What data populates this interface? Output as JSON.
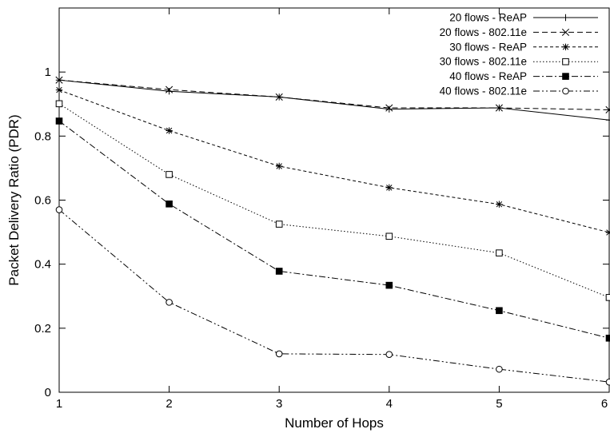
{
  "chart_data": {
    "type": "line",
    "title": "",
    "xlabel": "Number of Hops",
    "ylabel": "Packet Delivery Ratio (PDR)",
    "x": [
      1,
      2,
      3,
      4,
      5,
      6
    ],
    "xlim": [
      1,
      6
    ],
    "ylim": [
      0,
      1.2
    ],
    "xticks": [
      1,
      2,
      3,
      4,
      5,
      6
    ],
    "yticks": [
      0,
      0.2,
      0.4,
      0.6,
      0.8,
      1
    ],
    "grid": false,
    "legend_position": "top-right",
    "series": [
      {
        "name": "20 flows - ReAP",
        "marker": "plus",
        "dash": "solid",
        "values": [
          0.975,
          0.94,
          0.922,
          0.884,
          0.888,
          0.85
        ]
      },
      {
        "name": "20 flows - 802.11e",
        "marker": "cross",
        "dash": "dashed",
        "values": [
          0.975,
          0.945,
          0.922,
          0.888,
          0.888,
          0.882
        ]
      },
      {
        "name": "30 flows - ReAP",
        "marker": "star",
        "dash": "short-dash",
        "values": [
          0.944,
          0.817,
          0.706,
          0.639,
          0.587,
          0.499
        ]
      },
      {
        "name": "30 flows - 802.11e",
        "marker": "open-square",
        "dash": "dotted",
        "values": [
          0.901,
          0.68,
          0.525,
          0.487,
          0.435,
          0.296
        ]
      },
      {
        "name": "40 flows - ReAP",
        "marker": "filled-square",
        "dash": "dash-dot",
        "values": [
          0.847,
          0.588,
          0.378,
          0.334,
          0.255,
          0.169
        ]
      },
      {
        "name": "40 flows - 802.11e",
        "marker": "open-circle",
        "dash": "dash-dot-dot",
        "values": [
          0.57,
          0.281,
          0.12,
          0.118,
          0.072,
          0.032
        ]
      }
    ]
  }
}
